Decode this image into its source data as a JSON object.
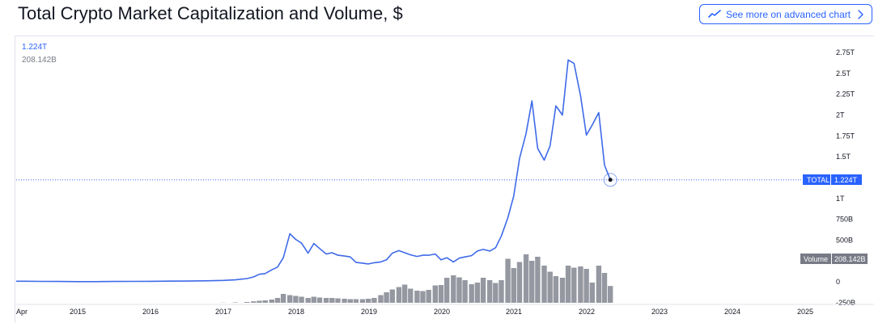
{
  "header": {
    "title": "Total Crypto Market Capitalization and Volume, $",
    "advanced_button_label": "See more on advanced chart"
  },
  "legend": {
    "cap_value": "1.224T",
    "volume_value": "208.142B"
  },
  "colors": {
    "line": "#3e6ae8",
    "bars": "#9598a1",
    "tag_blue": "#2962ff",
    "tag_gray": "#787b86"
  },
  "price_tags": {
    "total_label": "TOTAL",
    "total_value": "1.224T",
    "volume_label": "Volume",
    "volume_value": "208.142B"
  },
  "chart_data": {
    "type": "line",
    "title": "Total Crypto Market Capitalization and Volume, $",
    "y_axis_ticks": [
      "2.75T",
      "2.5T",
      "2.25T",
      "2T",
      "1.75T",
      "1.5T",
      "1.25T",
      "1T",
      "750B",
      "500B",
      "250B",
      "0",
      "-250B"
    ],
    "x_axis_ticks": [
      "Apr",
      "2015",
      "2016",
      "2017",
      "2018",
      "2019",
      "2020",
      "2021",
      "2022",
      "2023",
      "2024",
      "2025"
    ],
    "ylim_billions": [
      -250,
      2750
    ],
    "series": [
      {
        "x": [
          2014.25,
          2014.5,
          2014.75,
          2015.0,
          2015.25,
          2015.5,
          2015.75,
          2016.0,
          2016.25,
          2016.5,
          2016.75,
          2017.0,
          2017.17,
          2017.33,
          2017.42,
          2017.5,
          2017.58,
          2017.67,
          2017.75,
          2017.83,
          2017.92,
          2018.0,
          2018.08,
          2018.17,
          2018.25,
          2018.33,
          2018.42,
          2018.5,
          2018.58,
          2018.67,
          2018.75,
          2018.83,
          2018.92,
          2019.0,
          2019.08,
          2019.17,
          2019.25,
          2019.33,
          2019.42,
          2019.5,
          2019.58,
          2019.67,
          2019.75,
          2019.83,
          2019.92,
          2020.0,
          2020.08,
          2020.17,
          2020.25,
          2020.33,
          2020.42,
          2020.5,
          2020.58,
          2020.67,
          2020.75,
          2020.83,
          2020.92,
          2021.0,
          2021.08,
          2021.17,
          2021.25,
          2021.33,
          2021.42,
          2021.5,
          2021.58,
          2021.67,
          2021.75,
          2021.83,
          2021.92,
          2022.0,
          2022.08,
          2022.17,
          2022.25,
          2022.33
        ],
        "values": [
          8,
          6,
          5,
          4,
          4,
          5,
          6,
          7,
          9,
          10,
          13,
          18,
          25,
          40,
          60,
          92,
          100,
          145,
          178,
          290,
          578,
          510,
          465,
          345,
          460,
          400,
          335,
          350,
          320,
          310,
          300,
          235,
          225,
          215,
          230,
          240,
          265,
          345,
          375,
          350,
          325,
          305,
          320,
          320,
          335,
          265,
          290,
          240,
          285,
          300,
          315,
          370,
          390,
          370,
          410,
          550,
          770,
          1030,
          1480,
          1780,
          2170,
          1600,
          1460,
          1630,
          2110,
          2000,
          2660,
          2620,
          2230,
          1760,
          1880,
          2030,
          1400,
          1224
        ],
        "volume_values": [
          0,
          0,
          0,
          0,
          0,
          0,
          0,
          0,
          0,
          0,
          0,
          2,
          5,
          10,
          18,
          25,
          30,
          40,
          60,
          110,
          95,
          85,
          75,
          60,
          75,
          65,
          60,
          60,
          55,
          50,
          45,
          45,
          45,
          50,
          60,
          95,
          130,
          165,
          195,
          225,
          175,
          150,
          145,
          160,
          215,
          220,
          310,
          340,
          315,
          280,
          230,
          250,
          310,
          280,
          245,
          280,
          545,
          430,
          505,
          600,
          520,
          570,
          460,
          385,
          330,
          310,
          460,
          435,
          450,
          420,
          250,
          460,
          370,
          208
        ]
      }
    ]
  }
}
